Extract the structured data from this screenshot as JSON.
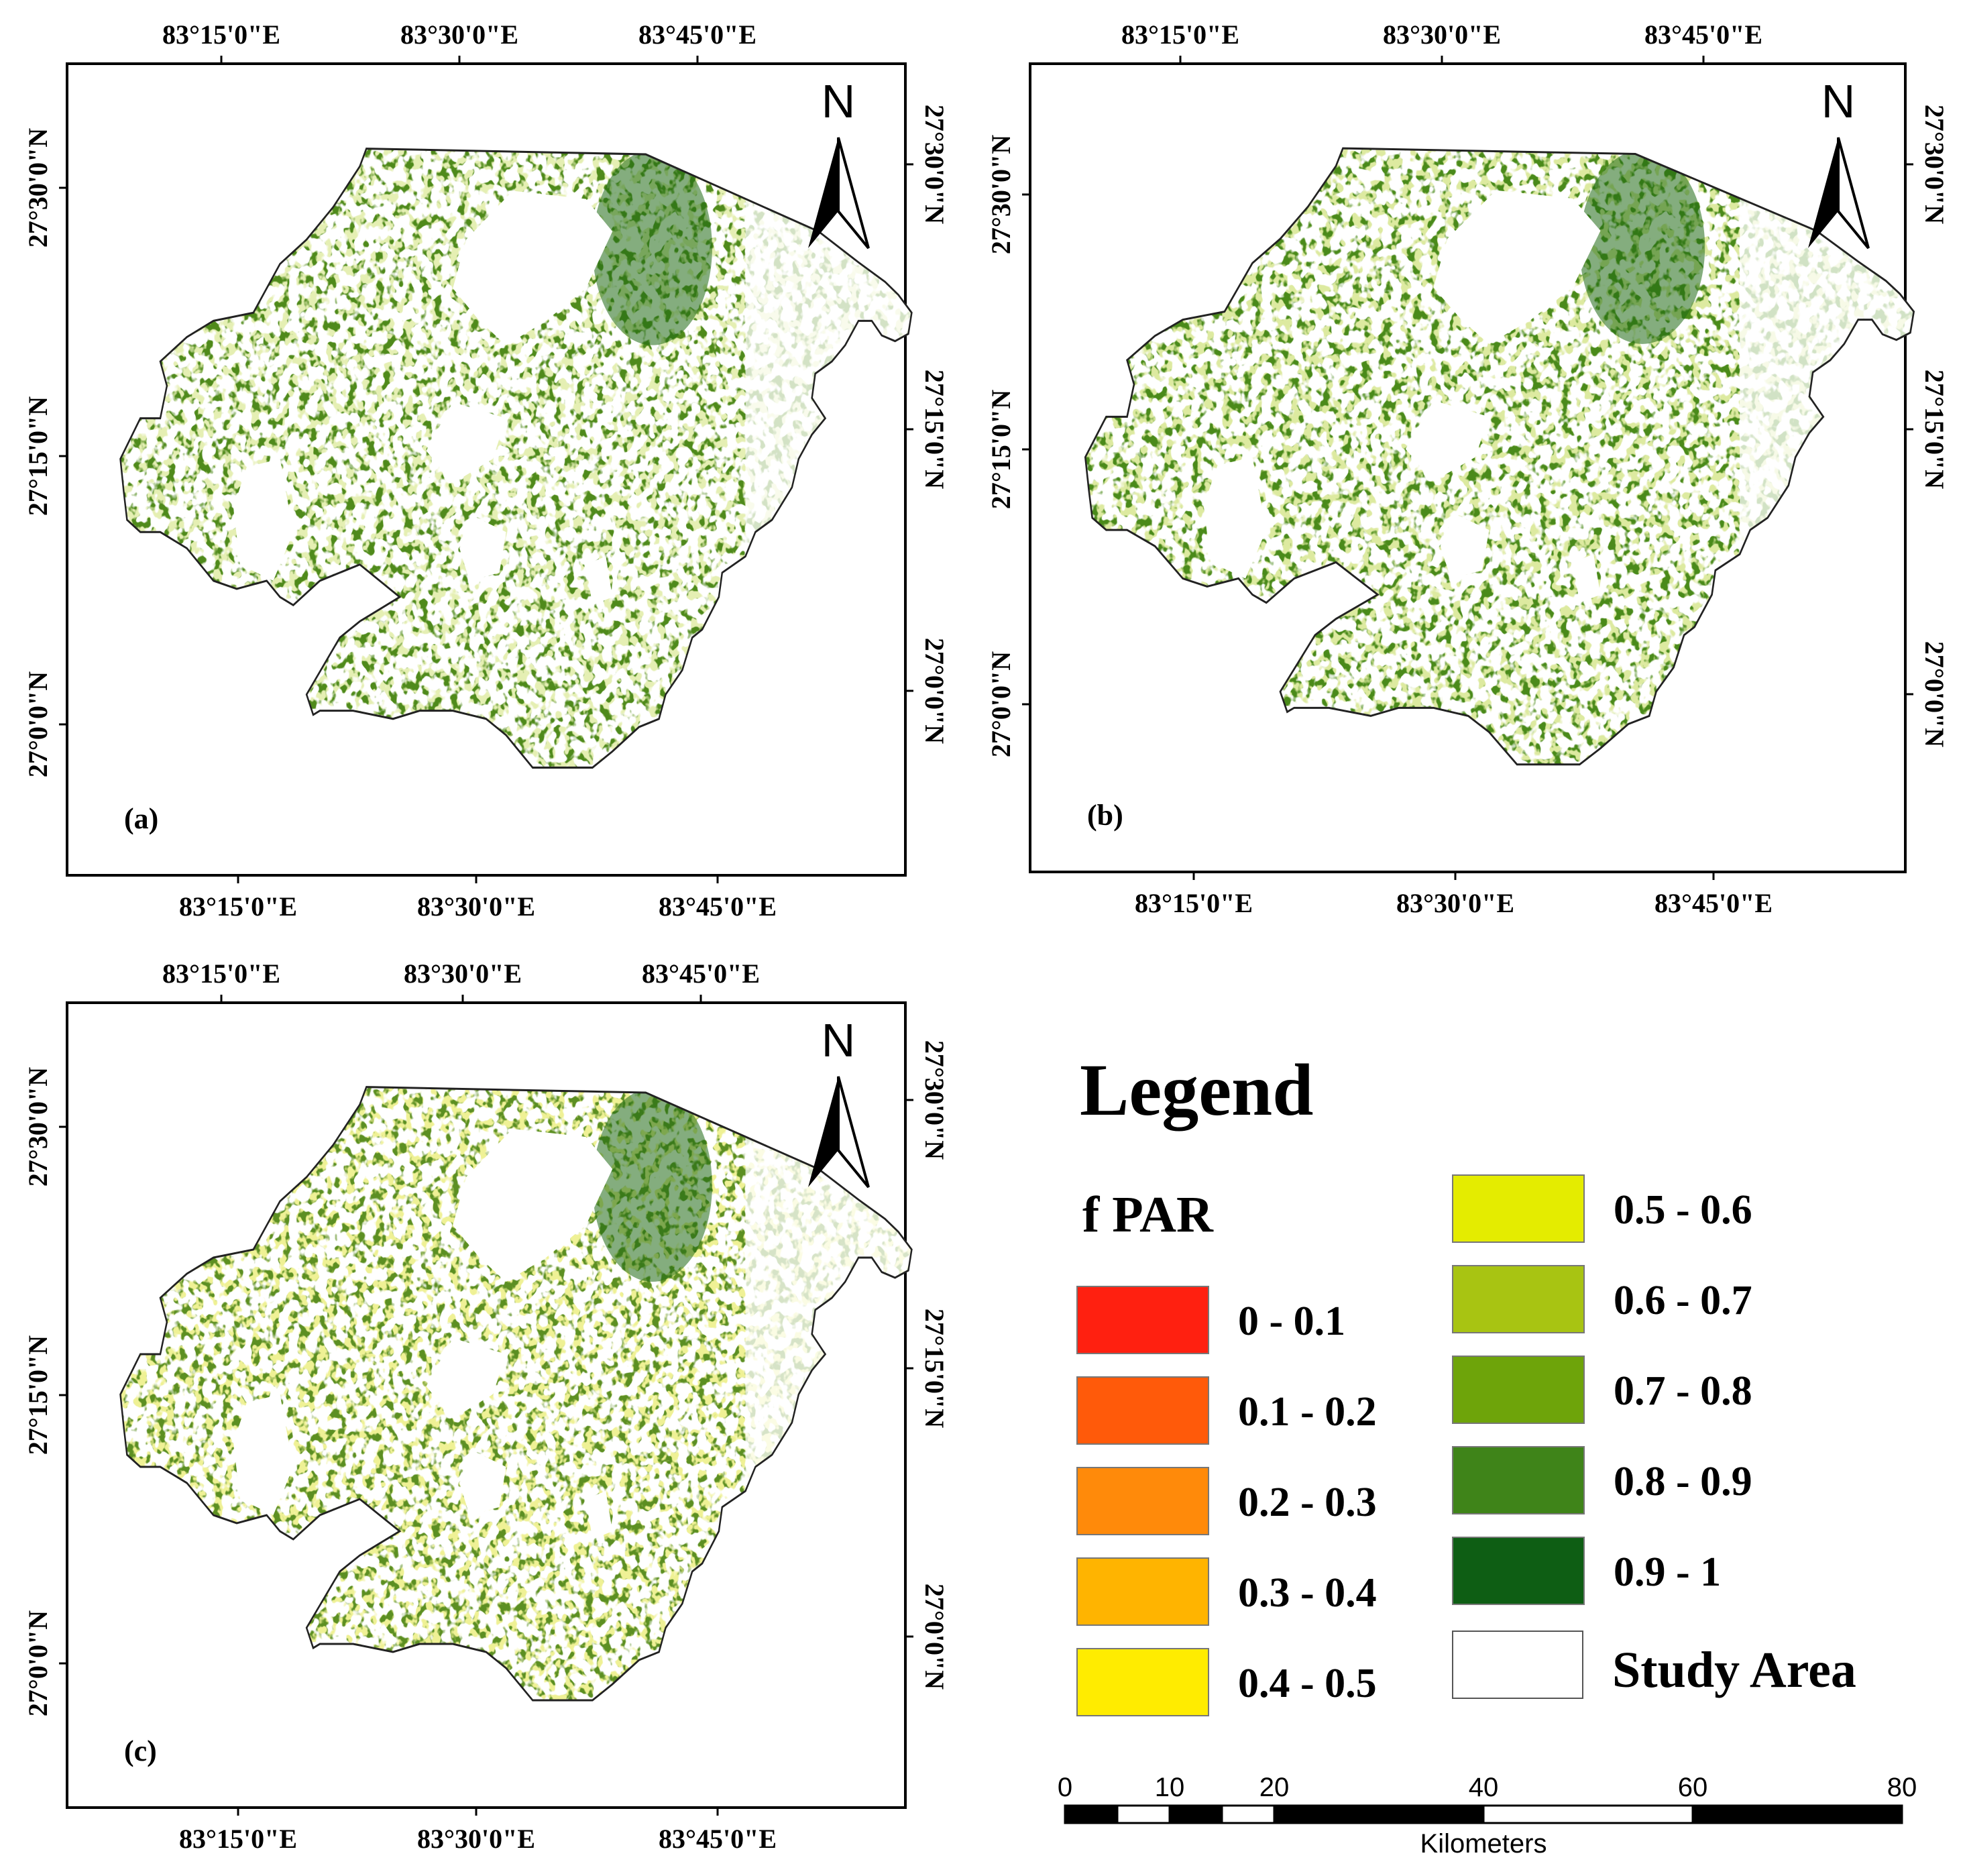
{
  "panels": [
    {
      "label": "(a)",
      "green_tone": "#4f8a1b",
      "speckle_tone": "#b9d35a"
    },
    {
      "label": "(b)",
      "green_tone": "#4a8a1a",
      "speckle_tone": "#a9c94a"
    },
    {
      "label": "(c)",
      "green_tone": "#5c8f22",
      "speckle_tone": "#c6d84d"
    }
  ],
  "axes": {
    "longitude_ticks": [
      "83°15'0\"E",
      "83°30'0\"E",
      "83°45'0\"E"
    ],
    "latitude_ticks": [
      "27°30'0\"N",
      "27°15'0\"N",
      "27°0'0\"N"
    ]
  },
  "north_arrow": {
    "letter": "N",
    "icon": "north-arrow-icon"
  },
  "legend": {
    "title": "Legend",
    "subtitle": "f PAR",
    "classes": [
      {
        "label": "0 - 0.1",
        "color": "#ff2010"
      },
      {
        "label": "0.1 - 0.2",
        "color": "#ff5a0a"
      },
      {
        "label": "0.2 - 0.3",
        "color": "#ff8a0a"
      },
      {
        "label": "0.3 - 0.4",
        "color": "#ffb400"
      },
      {
        "label": "0.4 - 0.5",
        "color": "#ffec00"
      },
      {
        "label": "0.5 - 0.6",
        "color": "#e4ec00"
      },
      {
        "label": "0.6 - 0.7",
        "color": "#a8c412"
      },
      {
        "label": "0.7 - 0.8",
        "color": "#6ea40a"
      },
      {
        "label": "0.8 - 0.9",
        "color": "#3f8419"
      },
      {
        "label": "0.9 - 1",
        "color": "#0e5e14"
      }
    ],
    "study_area": {
      "label": "Study Area",
      "color": "#ffffff"
    }
  },
  "scale_bar": {
    "ticks": [
      "0",
      "10",
      "20",
      "40",
      "60",
      "80"
    ],
    "unit": "Kilometers"
  }
}
